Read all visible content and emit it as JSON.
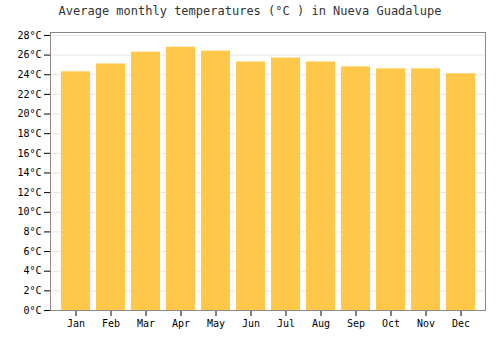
{
  "chart_data": {
    "type": "bar",
    "title": "Average monthly temperatures (°C ) in Nueva Guadalupe",
    "categories": [
      "Jan",
      "Feb",
      "Mar",
      "Apr",
      "May",
      "Jun",
      "Jul",
      "Aug",
      "Sep",
      "Oct",
      "Nov",
      "Dec"
    ],
    "values": [
      24.3,
      25.1,
      26.3,
      26.8,
      26.4,
      25.3,
      25.7,
      25.3,
      24.8,
      24.6,
      24.6,
      24.1
    ],
    "color": "#FFC84A",
    "ylim": [
      0,
      28.3
    ],
    "yticks": [
      {
        "value": 0,
        "label": "0°C"
      },
      {
        "value": 2,
        "label": "2°C"
      },
      {
        "value": 4,
        "label": "4°C"
      },
      {
        "value": 6,
        "label": "6°C"
      },
      {
        "value": 8,
        "label": "8°C"
      },
      {
        "value": 10,
        "label": "10°C"
      },
      {
        "value": 12,
        "label": "12°C"
      },
      {
        "value": 14,
        "label": "14°C"
      },
      {
        "value": 16,
        "label": "16°C"
      },
      {
        "value": 18,
        "label": "18°C"
      },
      {
        "value": 20,
        "label": "20°C"
      },
      {
        "value": 22,
        "label": "22°C"
      },
      {
        "value": 24,
        "label": "24°C"
      },
      {
        "value": 26,
        "label": "26°C"
      },
      {
        "value": 28,
        "label": "28°C"
      }
    ],
    "grid": true
  }
}
